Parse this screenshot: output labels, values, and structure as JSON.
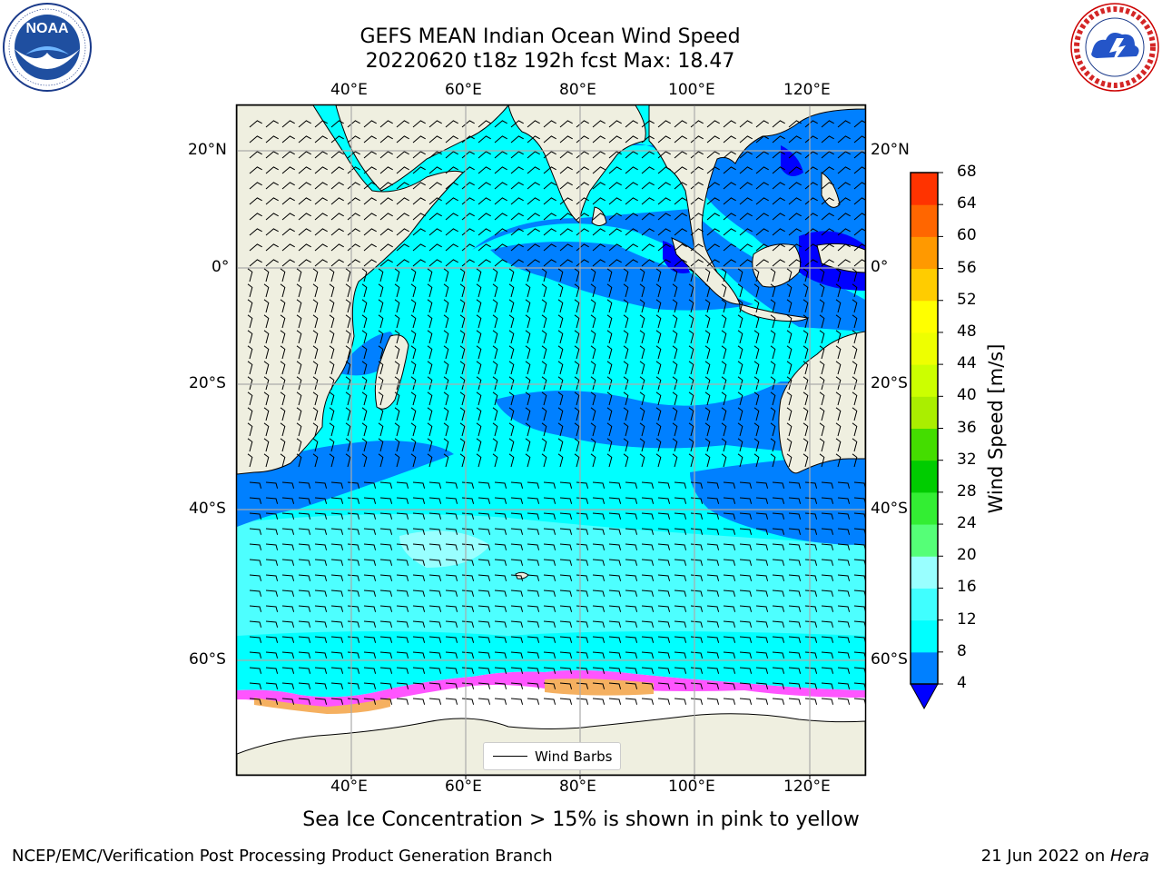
{
  "header": {
    "title": "GEFS MEAN Indian Ocean Wind Speed",
    "subtitle": "20220620 t18z 192h fcst   Max: 18.47"
  },
  "logos": {
    "left": {
      "text": "NOAA",
      "ring_text": "NATIONAL OCEANIC AND ATMOSPHERIC ADMINISTRATION · U.S. DEPARTMENT OF COMMERCE"
    },
    "right": {
      "ring_text": "NATIONAL WEATHER SERVICE"
    }
  },
  "map": {
    "top_lon_labels": [
      "40°E",
      "60°E",
      "80°E",
      "100°E",
      "120°E"
    ],
    "bottom_lon_labels": [
      "40°E",
      "60°E",
      "80°E",
      "100°E",
      "120°E"
    ],
    "left_lat_labels": [
      "20°N",
      "0°",
      "20°S",
      "40°S",
      "60°S"
    ],
    "right_lat_labels": [
      "20°N",
      "0°",
      "20°S",
      "40°S",
      "60°S"
    ],
    "legend_label": "Wind Barbs",
    "colors": {
      "land": "#efefe0",
      "ocean_cyan": "#00ffff",
      "ocean_light_cyan": "#4dffff",
      "ocean_blue": "#0080ff",
      "ocean_deep_blue": "#0000ff",
      "sea_ice_pink": "#ff55ff",
      "sea_ice_orange": "#f5b060",
      "antarctic_ice": "#ffffff"
    }
  },
  "colorbar": {
    "label": "Wind Speed [m/s]",
    "ticks": [
      "4",
      "8",
      "12",
      "16",
      "20",
      "24",
      "28",
      "32",
      "36",
      "40",
      "44",
      "48",
      "52",
      "56",
      "60",
      "64",
      "68"
    ],
    "colors": [
      "#0080ff",
      "#00ffff",
      "#40ffff",
      "#99ffff",
      "#55ff77",
      "#33ee33",
      "#00cc00",
      "#44dd00",
      "#aaee00",
      "#ccff00",
      "#eeff00",
      "#ffff00",
      "#ffcc00",
      "#ff9900",
      "#ff6600",
      "#ff3300",
      "#ff0000"
    ],
    "extend_color": "#0000ff"
  },
  "caption": "Sea Ice Concentration > 15% is shown in pink to yellow",
  "footer": {
    "left": "NCEP/EMC/Verification Post Processing Product Generation Branch",
    "right_date": "21 Jun 2022 on ",
    "right_host": "Hera"
  }
}
